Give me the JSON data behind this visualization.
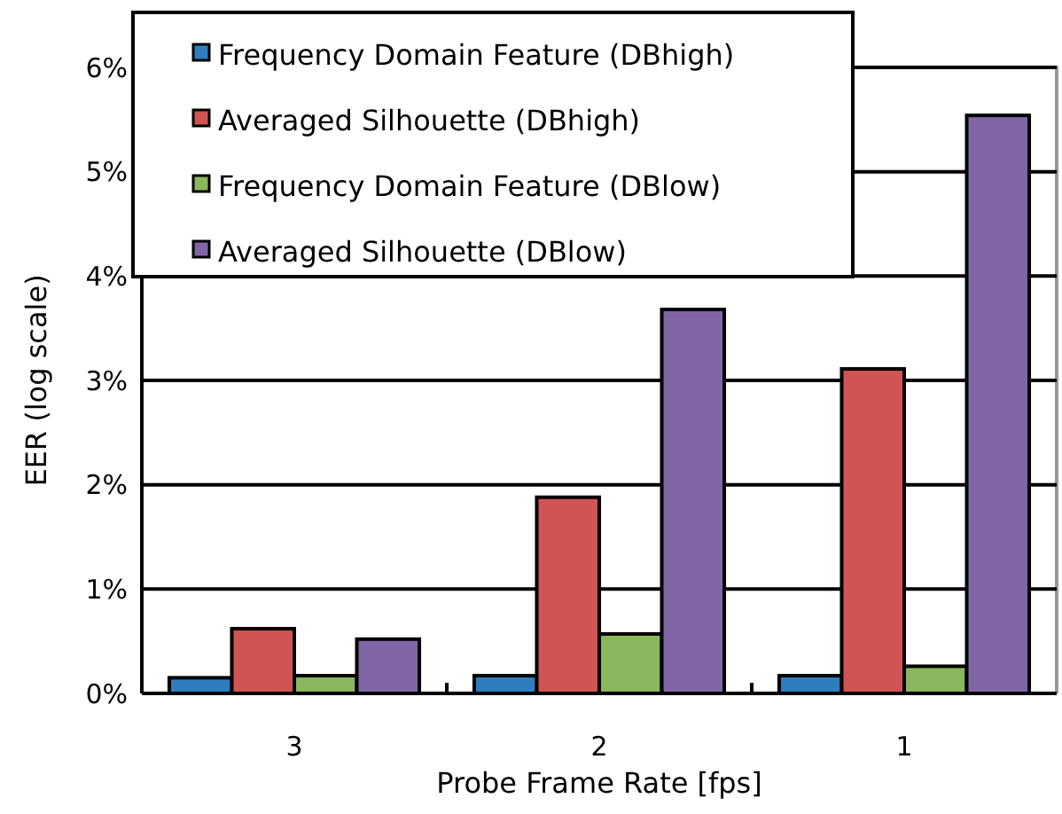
{
  "chart_data": {
    "type": "bar",
    "xlabel": "Probe Frame Rate [fps]",
    "ylabel": "EER (log scale)",
    "categories": [
      "3",
      "2",
      "1"
    ],
    "series": [
      {
        "name": "Frequency Domain Feature (DBhigh)",
        "color": "#2e7ebf",
        "values": [
          0.15,
          0.17,
          0.17
        ]
      },
      {
        "name": "Averaged Silhouette (DBhigh)",
        "color": "#d05454",
        "values": [
          0.62,
          1.88,
          3.11
        ]
      },
      {
        "name": "Frequency Domain Feature (DBlow)",
        "color": "#8ab65e",
        "values": [
          0.17,
          0.57,
          0.26
        ]
      },
      {
        "name": "Averaged Silhouette (DBlow)",
        "color": "#8066a6",
        "values": [
          0.52,
          3.68,
          5.54
        ]
      }
    ],
    "ylim": [
      0,
      6
    ],
    "yticks": [
      {
        "value": 0,
        "label": "0%"
      },
      {
        "value": 1,
        "label": "1%"
      },
      {
        "value": 2,
        "label": "2%"
      },
      {
        "value": 3,
        "label": "3%"
      },
      {
        "value": 4,
        "label": "4%"
      },
      {
        "value": 5,
        "label": "5%"
      },
      {
        "value": 6,
        "label": "6%"
      }
    ],
    "grid": "y",
    "legend": "top left"
  }
}
